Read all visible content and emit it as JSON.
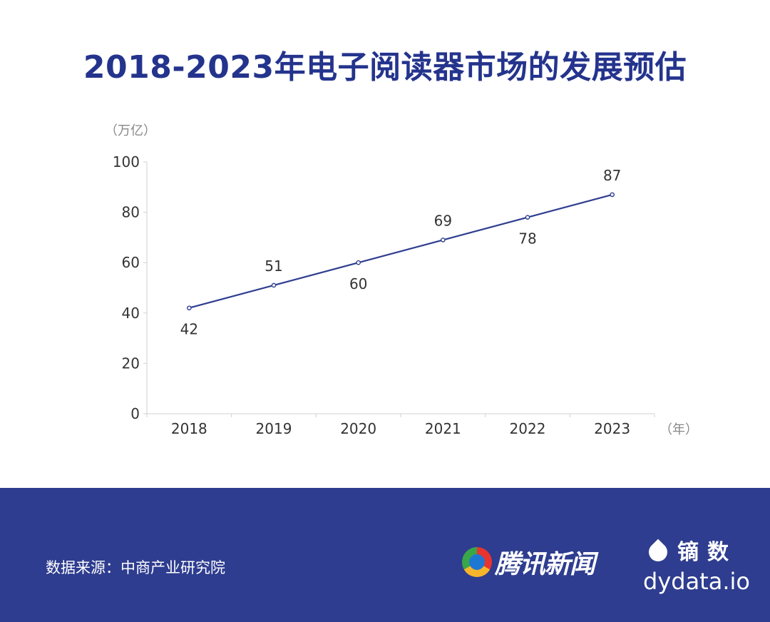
{
  "theme": {
    "title_color": "#24348d",
    "line_color": "#2e3d8f",
    "footer_bg": "#2e3d8f",
    "axis_color": "#d0d0d0",
    "text_color": "#333333",
    "unit_color": "#888888"
  },
  "footer": {
    "source_label": "数据来源：中商产业研究院",
    "tencent_logo_text": "腾讯新闻",
    "dydata_cn": "镝数",
    "dydata_en": "dydata.io"
  },
  "chart_data": {
    "type": "line",
    "title": "2018-2023年电子阅读器市场的发展预估",
    "ylabel": "（万亿）",
    "xlabel": "（年）",
    "categories": [
      "2018",
      "2019",
      "2020",
      "2021",
      "2022",
      "2023"
    ],
    "series": [
      {
        "values": [
          42,
          51,
          60,
          69,
          78,
          87
        ]
      }
    ],
    "label_positions": [
      "below",
      "above",
      "below",
      "above",
      "below",
      "above"
    ],
    "ylim": [
      0,
      100
    ],
    "yticks": [
      0,
      20,
      40,
      60,
      80,
      100
    ],
    "grid": false,
    "legend": "none"
  }
}
